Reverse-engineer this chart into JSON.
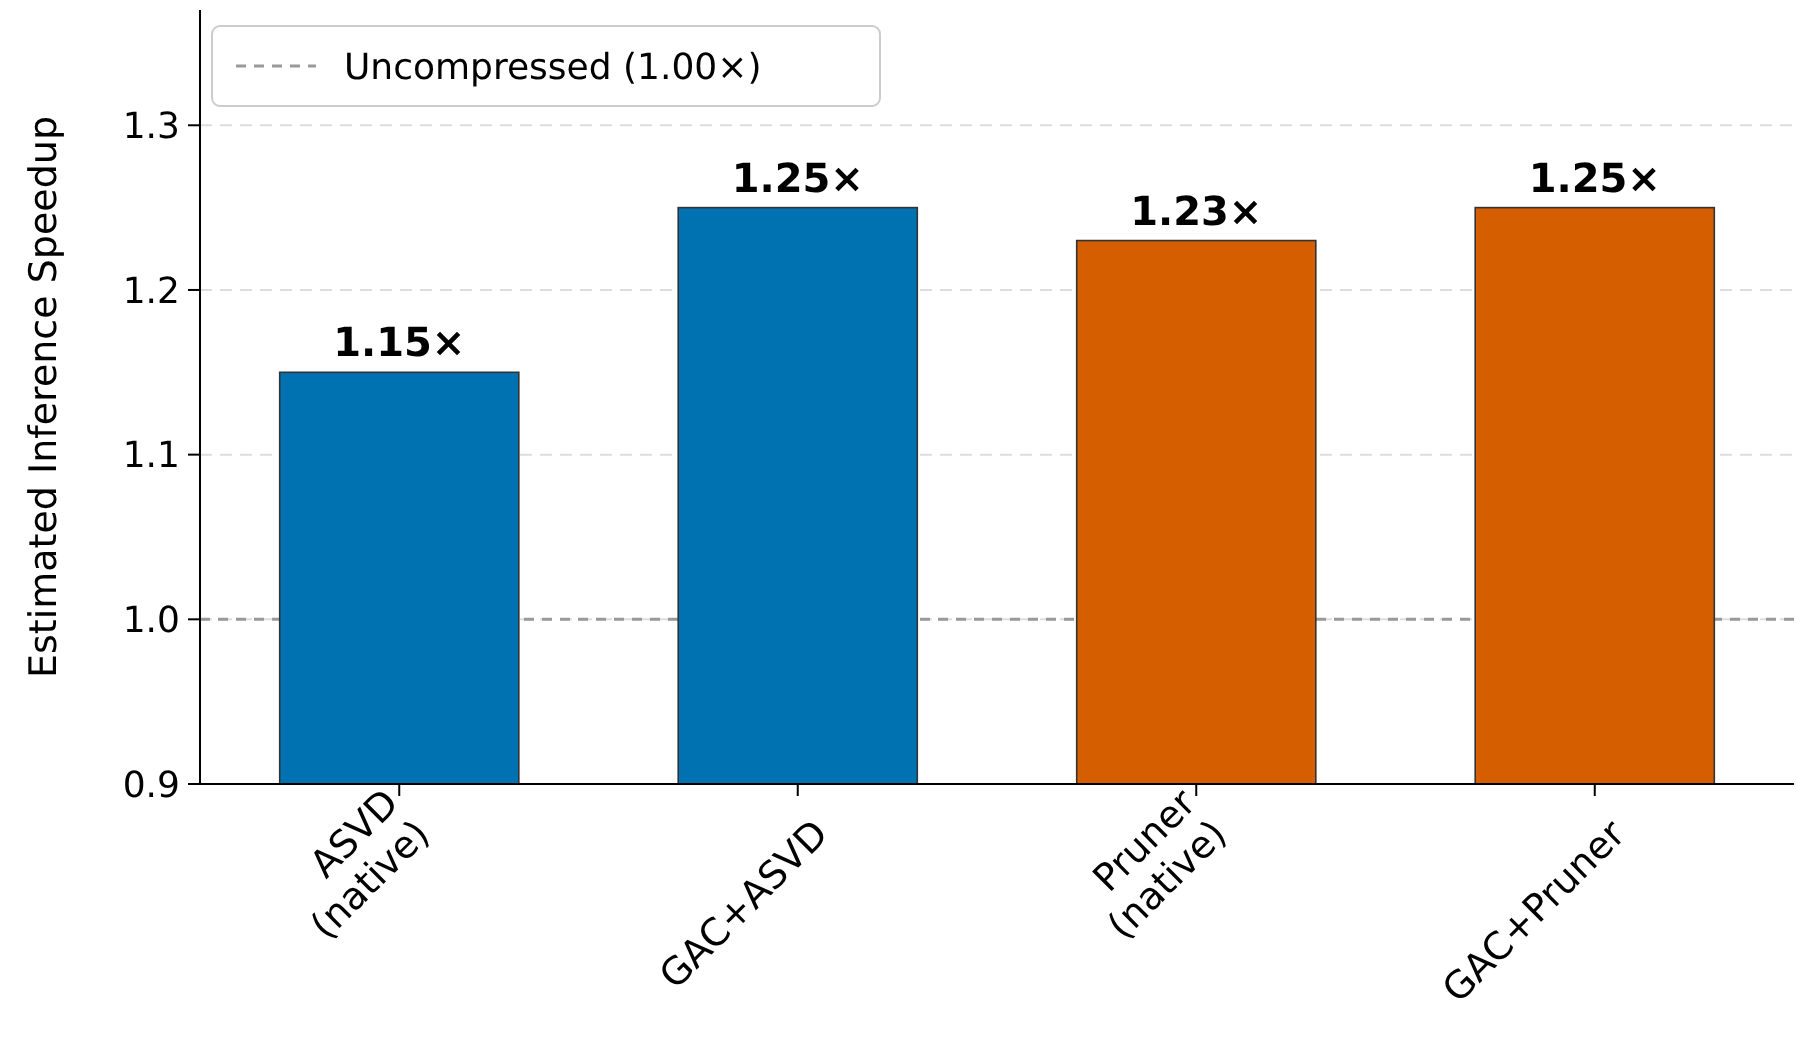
{
  "chart_data": {
    "type": "bar",
    "ylabel": "Estimated Inference Speedup",
    "categories": [
      "ASVD\n(native)",
      "GAC+ASVD",
      "Pruner\n(native)",
      "GAC+Pruner"
    ],
    "values": [
      1.15,
      1.25,
      1.23,
      1.25
    ],
    "colors": [
      "#0072b2",
      "#0072b2",
      "#d55e00",
      "#d55e00"
    ],
    "value_labels": [
      "1.15×",
      "1.25×",
      "1.23×",
      "1.25×"
    ],
    "ylim": [
      0.9,
      1.37
    ],
    "yticks": [
      0.9,
      {
        "value": 1.0,
        "label": "1.0"
      },
      1.1,
      1.2,
      1.3
    ],
    "grid": "y",
    "ref_lines": [
      {
        "axis": "y",
        "value": 1.0,
        "label": "Uncompressed (1.00×)",
        "color": "#999999",
        "line_style": "dashed"
      }
    ],
    "legend": "top left"
  }
}
